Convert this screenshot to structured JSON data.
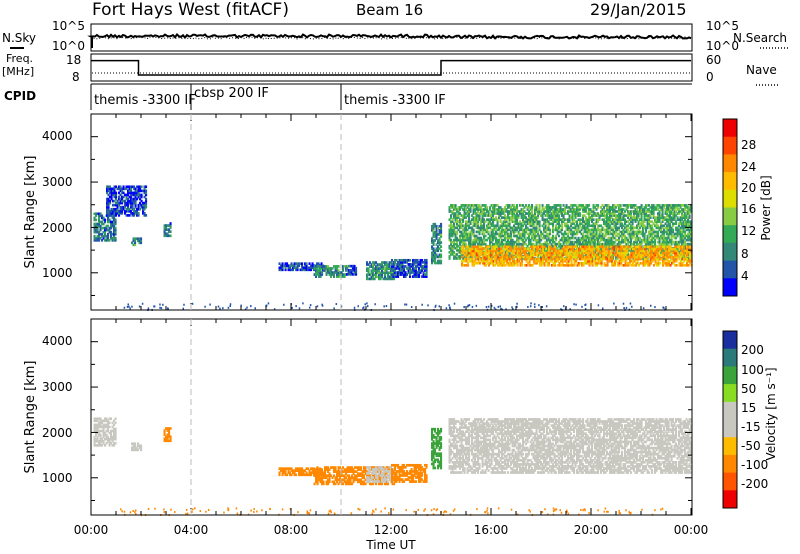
{
  "header": {
    "station": "Fort Hays West (fitACF)",
    "beam": "Beam 16",
    "date": "29/Jan/2015"
  },
  "noise_panel": {
    "left_label": "N.Sky",
    "right_label": "N.Search",
    "ticks_left": [
      "10^5",
      "10^0"
    ],
    "ticks_right": [
      "10^5",
      "10^0"
    ]
  },
  "freq_panel": {
    "left_label": "Freq.",
    "left_unit": "[MHz]",
    "right_label": "Nave",
    "ticks_left": [
      "18",
      "8"
    ],
    "ticks_right": [
      "60",
      "0"
    ]
  },
  "cpid_panel": {
    "label": "CPID",
    "segments": [
      {
        "text": "themis -3300 IF",
        "start_hour": 0.0
      },
      {
        "text": "cbsp 200 IF",
        "start_hour": 4.0
      },
      {
        "text": "themis -3300 IF",
        "start_hour": 10.0
      }
    ]
  },
  "axes": {
    "ylabel": "Slant Range [km]",
    "xlabel": "Time UT",
    "xticks": [
      "00:00",
      "04:00",
      "08:00",
      "12:00",
      "16:00",
      "20:00",
      "00:00"
    ],
    "yticks": [
      "1000",
      "2000",
      "3000",
      "4000"
    ]
  },
  "power_bar": {
    "label": "Power [dB]",
    "ticks": [
      "28",
      "24",
      "20",
      "16",
      "12",
      "8",
      "4"
    ],
    "colors": [
      "#ee0000",
      "#ff4400",
      "#ff8800",
      "#ffbb00",
      "#dddd00",
      "#88cc44",
      "#33aa55",
      "#338877",
      "#2255aa",
      "#0000ff"
    ]
  },
  "velocity_bar": {
    "label": "Velocity [m s⁻¹]",
    "ticks": [
      "200",
      "100",
      "50",
      "15",
      "-15",
      "-50",
      "-100",
      "-200"
    ],
    "colors": [
      "#1a2e9e",
      "#2a7a7a",
      "#3aa33a",
      "#88dd22",
      "#c8c8c0",
      "#c8c8c0",
      "#ffbb00",
      "#ff8800",
      "#ff5500",
      "#ee0000"
    ]
  },
  "chart_data": {
    "type": "heatmap",
    "x_range_hours": [
      0,
      24
    ],
    "y_range_km": [
      180,
      4500
    ],
    "vertical_dashed_hours": [
      4,
      10
    ],
    "freq_trace": [
      {
        "x": [
          0,
          1.9
        ],
        "y": 16.5
      },
      {
        "x": [
          1.9,
          14.0
        ],
        "y": 10.5
      },
      {
        "x": [
          14.0,
          24
        ],
        "y": 16.5
      }
    ],
    "power_regions": [
      {
        "t0": 0.1,
        "t1": 1.0,
        "r0": 1700,
        "r1": 2300,
        "p": 8
      },
      {
        "t0": 0.6,
        "t1": 2.2,
        "r0": 2250,
        "r1": 2900,
        "p": 5
      },
      {
        "t0": 1.6,
        "t1": 2.0,
        "r0": 1600,
        "r1": 1750,
        "p": 10
      },
      {
        "t0": 2.9,
        "t1": 3.2,
        "r0": 1800,
        "r1": 2100,
        "p": 8
      },
      {
        "t0": 7.5,
        "t1": 9.3,
        "r0": 1050,
        "r1": 1200,
        "p": 5
      },
      {
        "t0": 8.9,
        "t1": 10.2,
        "r0": 900,
        "r1": 1150,
        "p": 10
      },
      {
        "t0": 10.2,
        "t1": 10.6,
        "r0": 950,
        "r1": 1150,
        "p": 5
      },
      {
        "t0": 11.0,
        "t1": 12.1,
        "r0": 850,
        "r1": 1250,
        "p": 10
      },
      {
        "t0": 12.0,
        "t1": 13.4,
        "r0": 900,
        "r1": 1300,
        "p": 6
      },
      {
        "t0": 13.6,
        "t1": 14.0,
        "r0": 1200,
        "r1": 2100,
        "p": 10
      },
      {
        "t0": 14.3,
        "t1": 24,
        "r0": 1300,
        "r1": 2500,
        "p": 12
      },
      {
        "t0": 14.8,
        "t1": 24,
        "r0": 1150,
        "r1": 1600,
        "p": 22
      }
    ],
    "velocity_regions": [
      {
        "t0": 0.1,
        "t1": 1.0,
        "r0": 1700,
        "r1": 2300,
        "v": 0
      },
      {
        "t0": 1.6,
        "t1": 2.0,
        "r0": 1600,
        "r1": 1750,
        "v": 0
      },
      {
        "t0": 2.9,
        "t1": 3.2,
        "r0": 1800,
        "r1": 2100,
        "v": -60
      },
      {
        "t0": 7.5,
        "t1": 9.3,
        "r0": 1050,
        "r1": 1200,
        "v": -60
      },
      {
        "t0": 8.9,
        "t1": 12.1,
        "r0": 850,
        "r1": 1250,
        "v": -60
      },
      {
        "t0": 11.0,
        "t1": 12.1,
        "r0": 900,
        "r1": 1250,
        "v": 0
      },
      {
        "t0": 12.0,
        "t1": 13.4,
        "r0": 900,
        "r1": 1300,
        "v": -60
      },
      {
        "t0": 13.6,
        "t1": 14.0,
        "r0": 1200,
        "r1": 2100,
        "v": 60
      },
      {
        "t0": 14.3,
        "t1": 24,
        "r0": 1100,
        "r1": 2300,
        "v": 0
      }
    ]
  }
}
